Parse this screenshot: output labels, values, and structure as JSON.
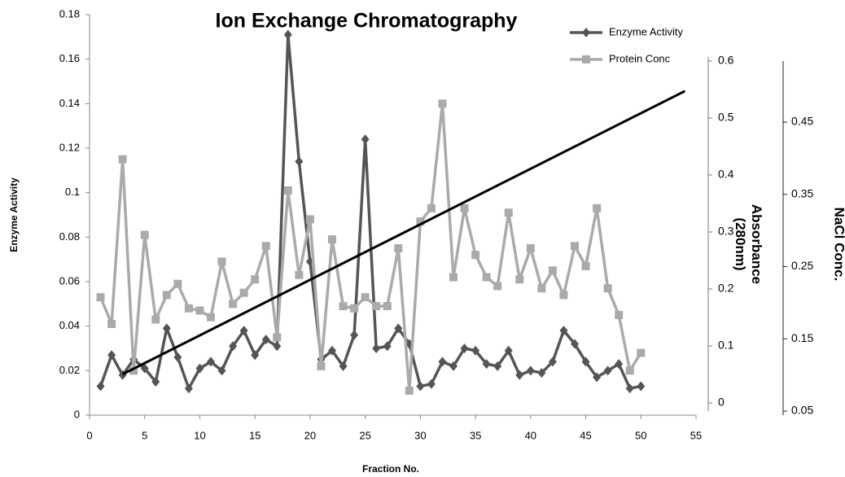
{
  "chart_data": {
    "type": "line",
    "title": "Ion Exchange Chromatography",
    "xlabel": "Fraction No.",
    "ylabel": "Enzyme Activity",
    "y2label": "Absorbance (280nm)",
    "y3label": "NaCl Conc.",
    "xlim": [
      0,
      55
    ],
    "xticks": [
      0,
      5,
      10,
      15,
      20,
      25,
      30,
      35,
      40,
      45,
      50,
      55
    ],
    "ylim": [
      0,
      0.18
    ],
    "yticks": [
      0,
      0.02,
      0.04,
      0.06,
      0.08,
      0.1,
      0.12,
      0.14,
      0.16,
      0.18
    ],
    "y2lim": [
      0,
      0.6
    ],
    "y2ticks": [
      0,
      0.1,
      0.2,
      0.3,
      0.4,
      0.5,
      0.6
    ],
    "y3lim": [
      0.05,
      0.45
    ],
    "y3ticks": [
      0.05,
      0.15,
      0.25,
      0.35,
      0.45
    ],
    "legend": "top-right",
    "series": [
      {
        "name": "Enzyme Activity",
        "color": "#555555",
        "marker": "diamond",
        "axis": "y",
        "x": [
          1,
          2,
          3,
          4,
          5,
          6,
          7,
          8,
          9,
          10,
          11,
          12,
          13,
          14,
          15,
          16,
          17,
          18,
          19,
          20,
          21,
          22,
          23,
          24,
          25,
          26,
          27,
          28,
          29,
          30,
          31,
          32,
          33,
          34,
          35,
          36,
          37,
          38,
          39,
          40,
          41,
          42,
          43,
          44,
          45,
          46,
          47,
          48,
          49,
          50
        ],
        "values": [
          0.013,
          0.027,
          0.018,
          0.025,
          0.021,
          0.015,
          0.039,
          0.026,
          0.012,
          0.021,
          0.024,
          0.02,
          0.031,
          0.038,
          0.027,
          0.034,
          0.031,
          0.171,
          0.114,
          0.069,
          0.025,
          0.029,
          0.022,
          0.036,
          0.124,
          0.03,
          0.031,
          0.039,
          0.032,
          0.013,
          0.014,
          0.024,
          0.022,
          0.03,
          0.029,
          0.023,
          0.022,
          0.029,
          0.018,
          0.02,
          0.019,
          0.024,
          0.038,
          0.032,
          0.024,
          0.017,
          0.02,
          0.023,
          0.012,
          0.013
        ]
      },
      {
        "name": "Protein Conc",
        "color": "#aaaaaa",
        "marker": "square",
        "axis": "y",
        "x": [
          1,
          2,
          3,
          4,
          5,
          6,
          7,
          8,
          9,
          10,
          11,
          12,
          13,
          14,
          15,
          16,
          17,
          18,
          19,
          20,
          21,
          22,
          23,
          24,
          25,
          26,
          27,
          28,
          29,
          30,
          31,
          32,
          33,
          34,
          35,
          36,
          37,
          38,
          39,
          40,
          41,
          42,
          43,
          44,
          45,
          46,
          47,
          48,
          49,
          50
        ],
        "values": [
          0.053,
          0.041,
          0.115,
          0.02,
          0.081,
          0.043,
          0.054,
          0.059,
          0.048,
          0.047,
          0.044,
          0.069,
          0.05,
          0.055,
          0.061,
          0.076,
          0.035,
          0.101,
          0.063,
          0.088,
          0.022,
          0.079,
          0.049,
          0.048,
          0.053,
          0.049,
          0.049,
          0.075,
          0.011,
          0.087,
          0.093,
          0.14,
          0.062,
          0.093,
          0.072,
          0.062,
          0.058,
          0.091,
          0.061,
          0.075,
          0.057,
          0.065,
          0.054,
          0.076,
          0.067,
          0.093,
          0.057,
          0.045,
          0.02,
          0.028
        ]
      },
      {
        "color": "#000000",
        "marker": "none",
        "axis": "y3",
        "x": [
          3,
          54
        ],
        "values": [
          0.101,
          0.493
        ]
      }
    ]
  }
}
